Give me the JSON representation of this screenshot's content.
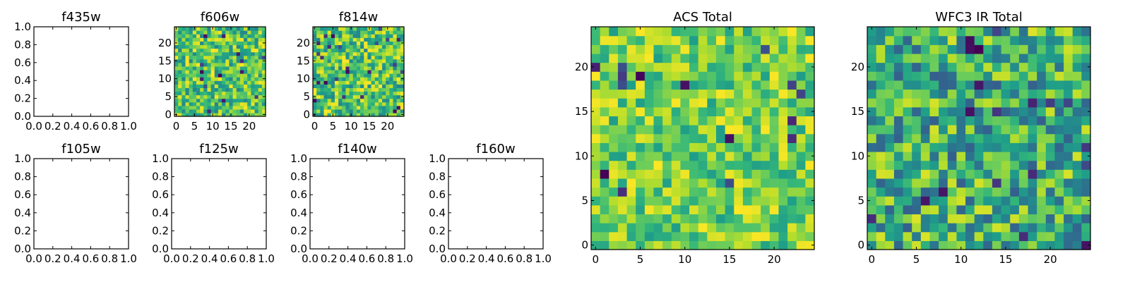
{
  "chart_data": [
    {
      "id": "f435w",
      "type": "heatmap",
      "title": "f435w",
      "empty": true,
      "xlim": [
        0,
        1
      ],
      "ylim": [
        0,
        1
      ],
      "xticks": [
        "0.0",
        "0.2",
        "0.4",
        "0.6",
        "0.8",
        "1.0"
      ],
      "yticks": [
        "0.0",
        "0.2",
        "0.4",
        "0.6",
        "0.8",
        "1.0"
      ]
    },
    {
      "id": "f606w",
      "type": "heatmap",
      "title": "f606w",
      "empty": false,
      "grid_size": 25,
      "seed": 606,
      "colormap": "viridis",
      "value_range": [
        0.45,
        1.0
      ],
      "xlim": [
        -0.5,
        24.5
      ],
      "ylim": [
        -0.5,
        24.5
      ],
      "xticks": [
        "0",
        "5",
        "10",
        "15",
        "20"
      ],
      "yticks": [
        "0",
        "5",
        "10",
        "15",
        "20"
      ]
    },
    {
      "id": "f814w",
      "type": "heatmap",
      "title": "f814w",
      "empty": false,
      "grid_size": 25,
      "seed": 814,
      "colormap": "viridis",
      "value_range": [
        0.45,
        1.0
      ],
      "xlim": [
        -0.5,
        24.5
      ],
      "ylim": [
        -0.5,
        24.5
      ],
      "xticks": [
        "0",
        "5",
        "10",
        "15",
        "20"
      ],
      "yticks": [
        "0",
        "5",
        "10",
        "15",
        "20"
      ]
    },
    {
      "id": "f105w",
      "type": "heatmap",
      "title": "f105w",
      "empty": true,
      "xlim": [
        0,
        1
      ],
      "ylim": [
        0,
        1
      ],
      "xticks": [
        "0.0",
        "0.2",
        "0.4",
        "0.6",
        "0.8",
        "1.0"
      ],
      "yticks": [
        "0.0",
        "0.2",
        "0.4",
        "0.6",
        "0.8",
        "1.0"
      ]
    },
    {
      "id": "f125w",
      "type": "heatmap",
      "title": "f125w",
      "empty": true,
      "xlim": [
        0,
        1
      ],
      "ylim": [
        0,
        1
      ],
      "xticks": [
        "0.0",
        "0.2",
        "0.4",
        "0.6",
        "0.8",
        "1.0"
      ],
      "yticks": [
        "0.0",
        "0.2",
        "0.4",
        "0.6",
        "0.8",
        "1.0"
      ]
    },
    {
      "id": "f140w",
      "type": "heatmap",
      "title": "f140w",
      "empty": true,
      "xlim": [
        0,
        1
      ],
      "ylim": [
        0,
        1
      ],
      "xticks": [
        "0.0",
        "0.2",
        "0.4",
        "0.6",
        "0.8",
        "1.0"
      ],
      "yticks": [
        "0.0",
        "0.2",
        "0.4",
        "0.6",
        "0.8",
        "1.0"
      ]
    },
    {
      "id": "f160w",
      "type": "heatmap",
      "title": "f160w",
      "empty": true,
      "xlim": [
        0,
        1
      ],
      "ylim": [
        0,
        1
      ],
      "xticks": [
        "0.0",
        "0.2",
        "0.4",
        "0.6",
        "0.8",
        "1.0"
      ],
      "yticks": [
        "0.0",
        "0.2",
        "0.4",
        "0.6",
        "0.8",
        "1.0"
      ]
    },
    {
      "id": "acs_total",
      "type": "heatmap",
      "title": "ACS Total",
      "empty": false,
      "grid_size": 25,
      "seed": 1001,
      "colormap": "viridis",
      "value_range": [
        0.55,
        1.0
      ],
      "xlim": [
        -0.5,
        24.5
      ],
      "ylim": [
        -0.5,
        24.5
      ],
      "xticks": [
        "0",
        "5",
        "10",
        "15",
        "20"
      ],
      "yticks": [
        "0",
        "5",
        "10",
        "15",
        "20"
      ]
    },
    {
      "id": "wfc3_ir_total",
      "type": "heatmap",
      "title": "WFC3 IR Total",
      "empty": false,
      "grid_size": 25,
      "seed": 2002,
      "colormap": "viridis",
      "value_range": [
        0.3,
        0.95
      ],
      "xlim": [
        -0.5,
        24.5
      ],
      "ylim": [
        -0.5,
        24.5
      ],
      "xticks": [
        "0",
        "5",
        "10",
        "15",
        "20"
      ],
      "yticks": [
        "0",
        "5",
        "10",
        "15",
        "20"
      ]
    }
  ]
}
